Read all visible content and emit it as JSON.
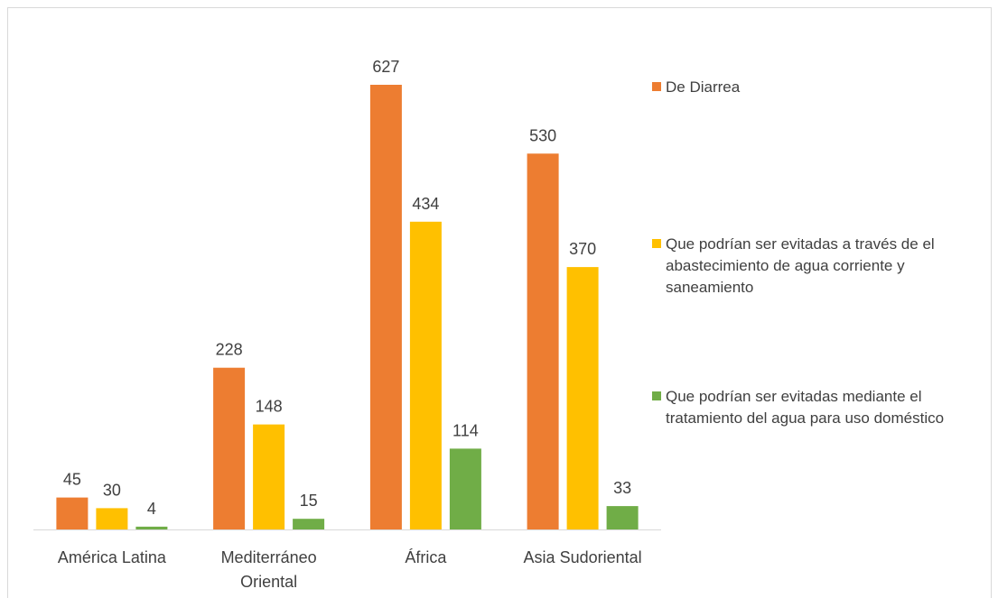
{
  "chart_data": {
    "type": "bar",
    "title": "",
    "xlabel": "",
    "ylabel": "",
    "ylim": [
      0,
      700
    ],
    "grid": false,
    "legend_position": "right",
    "categories": [
      [
        "América Latina"
      ],
      [
        "Mediterráneo",
        "Oriental"
      ],
      [
        "África"
      ],
      [
        "Asia Sudoriental"
      ]
    ],
    "series": [
      {
        "name": "De Diarrea",
        "color": "#ed7d31",
        "values": [
          45,
          228,
          627,
          530
        ]
      },
      {
        "name": "Que podrían ser evitadas a través de el abastecimiento de agua corriente y saneamiento",
        "color": "#ffc000",
        "values": [
          30,
          148,
          434,
          370
        ]
      },
      {
        "name": "Que podrían ser evitadas mediante el tratamiento del agua para uso doméstico",
        "color": "#70ad47",
        "values": [
          4,
          15,
          114,
          33
        ]
      }
    ]
  }
}
